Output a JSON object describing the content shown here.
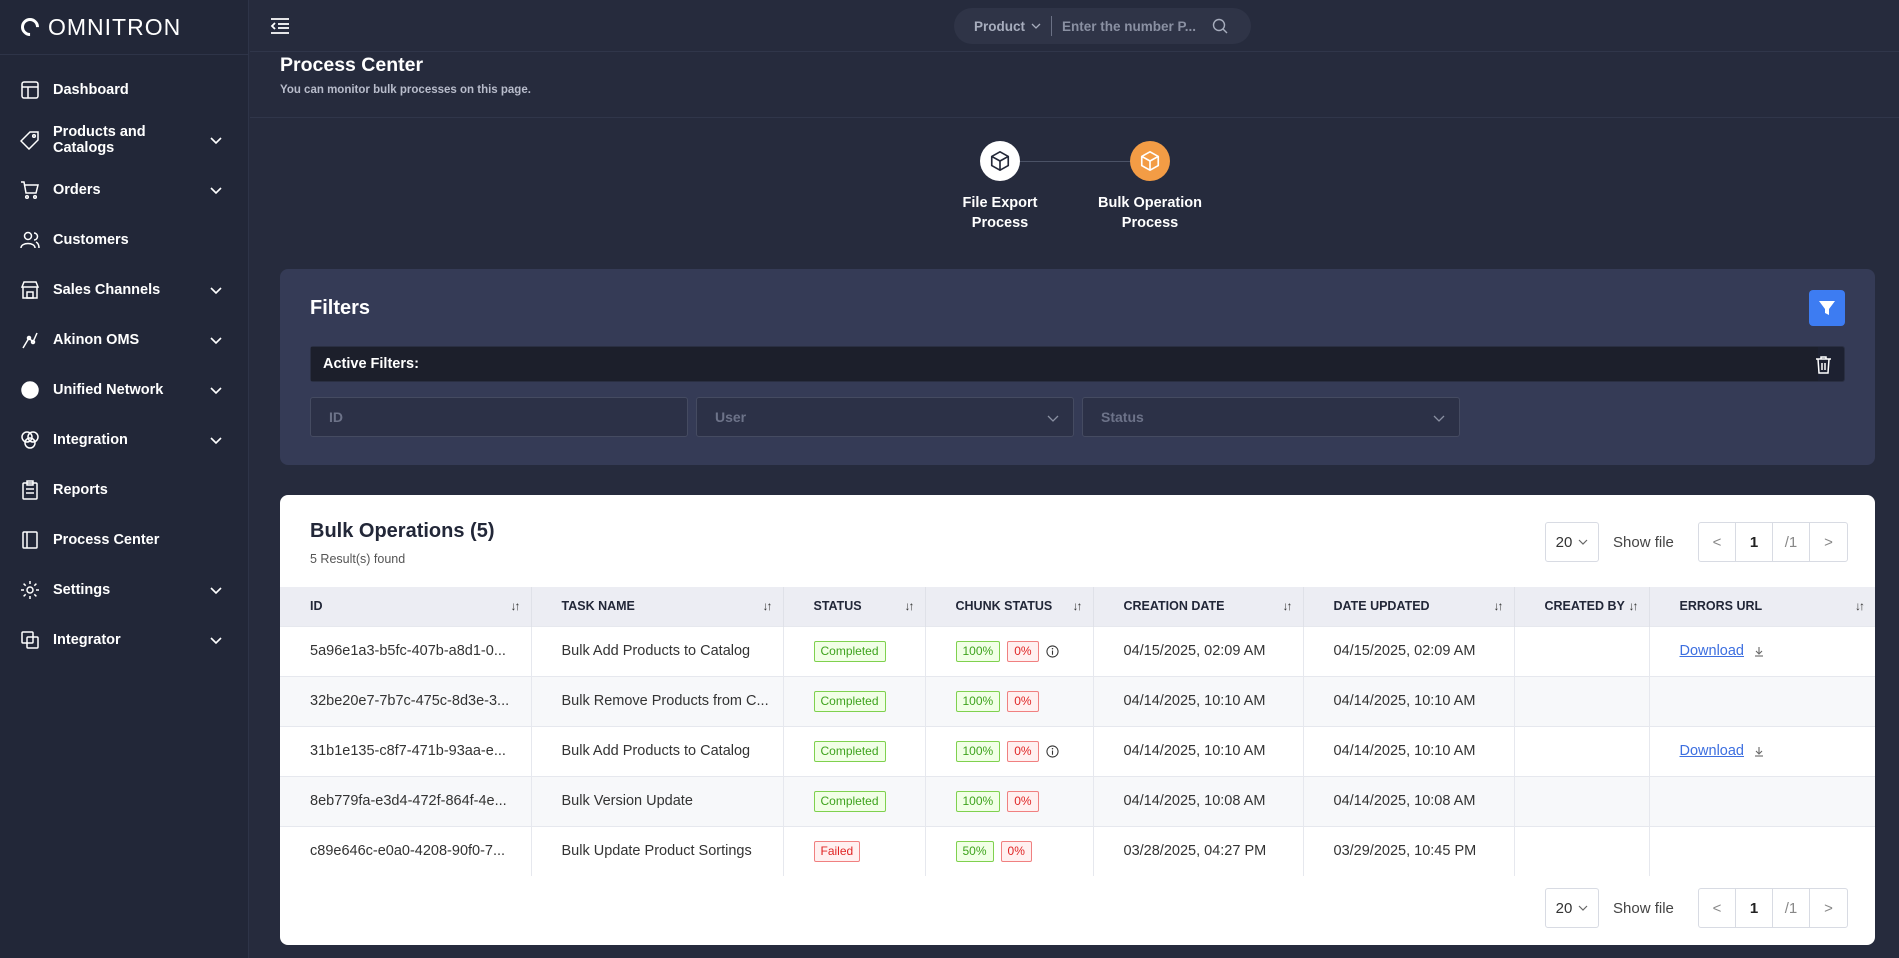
{
  "brand": {
    "name": "OMNITRON"
  },
  "sidebar": {
    "items": [
      {
        "label": "Dashboard",
        "icon": "layout-icon",
        "has_children": false
      },
      {
        "label": "Products and Catalogs",
        "icon": "tag-icon",
        "has_children": true
      },
      {
        "label": "Orders",
        "icon": "cart-icon",
        "has_children": true
      },
      {
        "label": "Customers",
        "icon": "users-icon",
        "has_children": false
      },
      {
        "label": "Sales Channels",
        "icon": "store-icon",
        "has_children": true
      },
      {
        "label": "Akinon OMS",
        "icon": "oms-icon",
        "has_children": true
      },
      {
        "label": "Unified Network",
        "icon": "network-icon",
        "has_children": true
      },
      {
        "label": "Integration",
        "icon": "integration-icon",
        "has_children": true
      },
      {
        "label": "Reports",
        "icon": "clipboard-icon",
        "has_children": false
      },
      {
        "label": "Process Center",
        "icon": "book-icon",
        "has_children": false
      },
      {
        "label": "Settings",
        "icon": "gear-icon",
        "has_children": true
      },
      {
        "label": "Integrator",
        "icon": "integrator-icon",
        "has_children": true
      }
    ]
  },
  "topbar": {
    "search_type": "Product",
    "search_placeholder": "Enter the number P..."
  },
  "page": {
    "title": "Process Center",
    "subtitle": "You can monitor bulk processes on this page."
  },
  "steps": [
    {
      "label_line1": "File Export",
      "label_line2": "Process",
      "active": false
    },
    {
      "label_line1": "Bulk Operation",
      "label_line2": "Process",
      "active": true
    }
  ],
  "filters": {
    "title": "Filters",
    "active_label": "Active Filters:",
    "id_placeholder": "ID",
    "user_placeholder": "User",
    "status_placeholder": "Status"
  },
  "table": {
    "title": "Bulk Operations (5)",
    "results": "5 Result(s) found",
    "per_page": "20",
    "show_file": "Show file",
    "current_page": "1",
    "total_pages": "/1",
    "prev": "<",
    "next": ">",
    "columns": [
      "ID",
      "TASK NAME",
      "STATUS",
      "CHUNK STATUS",
      "CREATION DATE",
      "DATE UPDATED",
      "CREATED BY",
      "ERRORS URL"
    ],
    "rows": [
      {
        "id": "5a96e1a3-b5fc-407b-a8d1-0...",
        "task": "Bulk Add Products to Catalog",
        "status": "Completed",
        "status_kind": "ok",
        "chunk_ok": "100%",
        "chunk_fail": "0%",
        "info": true,
        "created": "04/15/2025, 02:09 AM",
        "updated": "04/15/2025, 02:09 AM",
        "created_by": "",
        "errors_url": "Download"
      },
      {
        "id": "32be20e7-7b7c-475c-8d3e-3...",
        "task": "Bulk Remove Products from C...",
        "status": "Completed",
        "status_kind": "ok",
        "chunk_ok": "100%",
        "chunk_fail": "0%",
        "info": false,
        "created": "04/14/2025, 10:10 AM",
        "updated": "04/14/2025, 10:10 AM",
        "created_by": "",
        "errors_url": ""
      },
      {
        "id": "31b1e135-c8f7-471b-93aa-e...",
        "task": "Bulk Add Products to Catalog",
        "status": "Completed",
        "status_kind": "ok",
        "chunk_ok": "100%",
        "chunk_fail": "0%",
        "info": true,
        "created": "04/14/2025, 10:10 AM",
        "updated": "04/14/2025, 10:10 AM",
        "created_by": "",
        "errors_url": "Download"
      },
      {
        "id": "8eb779fa-e3d4-472f-864f-4e...",
        "task": "Bulk Version Update",
        "status": "Completed",
        "status_kind": "ok",
        "chunk_ok": "100%",
        "chunk_fail": "0%",
        "info": false,
        "created": "04/14/2025, 10:08 AM",
        "updated": "04/14/2025, 10:08 AM",
        "created_by": "",
        "errors_url": ""
      },
      {
        "id": "c89e646c-e0a0-4208-90f0-7...",
        "task": "Bulk Update Product Sortings",
        "status": "Failed",
        "status_kind": "fail",
        "chunk_ok": "50%",
        "chunk_fail": "0%",
        "info": false,
        "created": "03/28/2025, 04:27 PM",
        "updated": "03/29/2025, 10:45 PM",
        "created_by": "",
        "errors_url": ""
      }
    ]
  },
  "colors": {
    "accent": "#3d7cf2",
    "active_step": "#f39c45",
    "success": "#3ea31d",
    "danger": "#e02424"
  }
}
